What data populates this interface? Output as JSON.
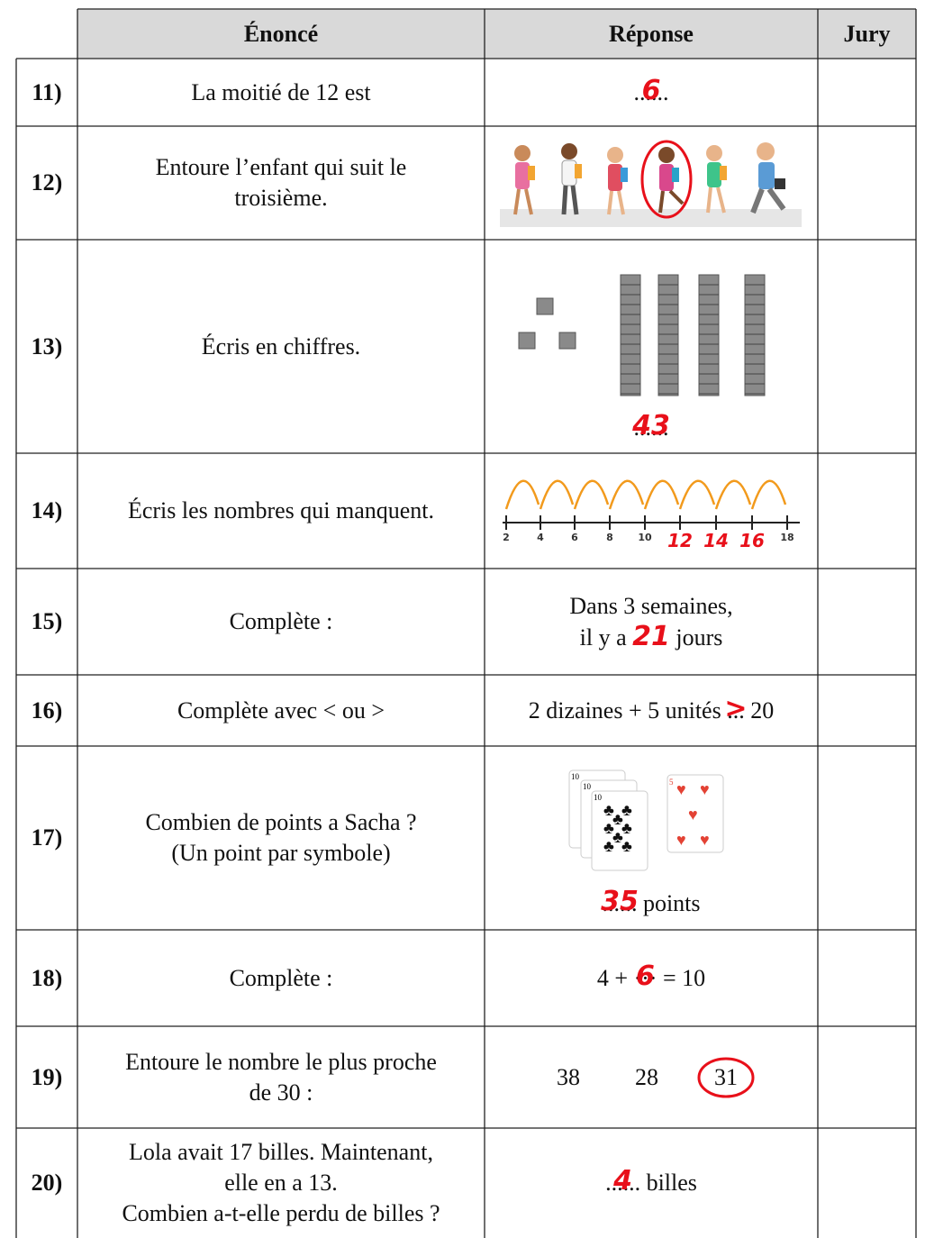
{
  "header": {
    "columns": [
      "Énoncé",
      "Réponse",
      "Jury"
    ]
  },
  "rows": [
    {
      "number": "11)",
      "prompt": [
        "La moitié de 12 est"
      ],
      "response": {
        "dots": "......",
        "answer": "6"
      }
    },
    {
      "number": "12)",
      "prompt": [
        "Entoure l’enfant qui suit le",
        "troisième."
      ]
    },
    {
      "number": "13)",
      "prompt": [
        "Écris en chiffres."
      ],
      "response": {
        "dots": "......",
        "answer": "43"
      }
    },
    {
      "number": "14)",
      "prompt": [
        "Écris les nombres qui manquent."
      ],
      "response": {
        "printed_ticks": [
          "2",
          "4",
          "6",
          "8",
          "10",
          "18"
        ],
        "answers": [
          "12",
          "14",
          "16"
        ]
      }
    },
    {
      "number": "15)",
      "prompt": [
        "Complète :"
      ],
      "response": {
        "line1": "Dans 3 semaines,",
        "before": "il y a",
        "answer": "21",
        "after": "jours"
      }
    },
    {
      "number": "16)",
      "prompt": [
        "Complète avec < ou >"
      ],
      "response": {
        "before": "2 dizaines + 5 unités",
        "dots": "...",
        "answer": ">",
        "after": "20"
      }
    },
    {
      "number": "17)",
      "prompt": [
        "Combien de points a Sacha ?",
        "(Un point par symbole)"
      ],
      "response": {
        "card_labels": [
          "10",
          "5"
        ],
        "dots": "......",
        "answer": "35",
        "after": "points"
      }
    },
    {
      "number": "18)",
      "prompt": [
        "Complète :"
      ],
      "response": {
        "before": "4 +",
        "dots": "···",
        "answer": "6",
        "after": "= 10"
      }
    },
    {
      "number": "19)",
      "prompt": [
        "Entoure le nombre le plus proche",
        "de 30 :"
      ],
      "response": {
        "choices": [
          "38",
          "28",
          "31"
        ]
      }
    },
    {
      "number": "20)",
      "prompt": [
        "Lola avait 17 billes. Maintenant,",
        "elle en a 13.",
        "Combien a-t-elle perdu de billes ?"
      ],
      "response": {
        "dots": "......",
        "answer": "4",
        "after": "billes"
      }
    }
  ]
}
